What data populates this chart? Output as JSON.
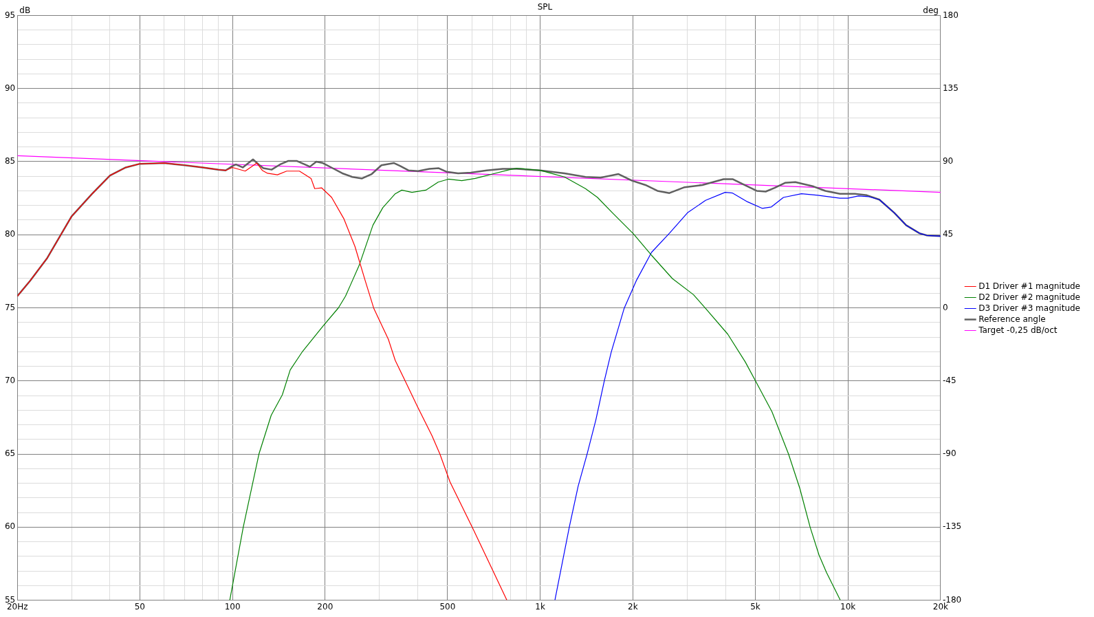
{
  "chart_data": {
    "type": "line",
    "title": "SPL",
    "ylabel": "dB",
    "y2label": "deg",
    "log": "x",
    "grid": true,
    "legend": "right",
    "marker": "none",
    "xlim": [
      20,
      20000
    ],
    "xticks": [
      {
        "value": 20,
        "label": "20Hz"
      },
      {
        "value": 30,
        "label": null
      },
      {
        "value": 40,
        "label": null
      },
      50,
      {
        "value": 60,
        "label": null
      },
      {
        "value": 70,
        "label": null
      },
      {
        "value": 80,
        "label": null
      },
      {
        "value": 90,
        "label": null
      },
      100,
      200,
      {
        "value": 300,
        "label": null
      },
      {
        "value": 400,
        "label": null
      },
      500,
      {
        "value": 600,
        "label": null
      },
      {
        "value": 700,
        "label": null
      },
      {
        "value": 800,
        "label": null
      },
      {
        "value": 900,
        "label": null
      },
      {
        "value": 1000,
        "label": "1k"
      },
      {
        "value": 2000,
        "label": "2k"
      },
      {
        "value": 3000,
        "label": null
      },
      {
        "value": 4000,
        "label": null
      },
      {
        "value": 5000,
        "label": "5k"
      },
      {
        "value": 6000,
        "label": null
      },
      {
        "value": 7000,
        "label": null
      },
      {
        "value": 8000,
        "label": null
      },
      {
        "value": 9000,
        "label": null
      },
      {
        "value": 10000,
        "label": "10k"
      },
      {
        "value": 20000,
        "label": "20k"
      }
    ],
    "ylim": [
      55,
      95
    ],
    "yticks": [
      55,
      {
        "value": 56,
        "label": null
      },
      {
        "value": 57,
        "label": null
      },
      {
        "value": 58,
        "label": null
      },
      {
        "value": 59,
        "label": null
      },
      60,
      {
        "value": 61,
        "label": null
      },
      {
        "value": 62,
        "label": null
      },
      {
        "value": 63,
        "label": null
      },
      {
        "value": 64,
        "label": null
      },
      65,
      {
        "value": 66,
        "label": null
      },
      {
        "value": 67,
        "label": null
      },
      {
        "value": 68,
        "label": null
      },
      {
        "value": 69,
        "label": null
      },
      70,
      {
        "value": 71,
        "label": null
      },
      {
        "value": 72,
        "label": null
      },
      {
        "value": 73,
        "label": null
      },
      {
        "value": 74,
        "label": null
      },
      75,
      {
        "value": 76,
        "label": null
      },
      {
        "value": 77,
        "label": null
      },
      {
        "value": 78,
        "label": null
      },
      {
        "value": 79,
        "label": null
      },
      80,
      {
        "value": 81,
        "label": null
      },
      {
        "value": 82,
        "label": null
      },
      {
        "value": 83,
        "label": null
      },
      {
        "value": 84,
        "label": null
      },
      85,
      {
        "value": 86,
        "label": null
      },
      {
        "value": 87,
        "label": null
      },
      {
        "value": 88,
        "label": null
      },
      {
        "value": 89,
        "label": null
      },
      90,
      {
        "value": 91,
        "label": null
      },
      {
        "value": 92,
        "label": null
      },
      {
        "value": 93,
        "label": null
      },
      {
        "value": 94,
        "label": null
      },
      95
    ],
    "y2lim": [
      -180,
      180
    ],
    "y2ticks": [
      -180,
      -135,
      -90,
      -45,
      0,
      45,
      90,
      135,
      180
    ],
    "series": [
      {
        "name": "D1 Driver #1 magnitude",
        "color": "#ff0000",
        "x": [
          20,
          22,
          25,
          30,
          35,
          40,
          45,
          50,
          60,
          70,
          80,
          90,
          95,
          100,
          110,
          120,
          125,
          130,
          140,
          150,
          165,
          180,
          185,
          195,
          210,
          230,
          250,
          270,
          288,
          321,
          338,
          364,
          399,
          445,
          472,
          509,
          601,
          699,
          779
        ],
        "values": [
          75.8,
          76.85,
          78.4,
          81.25,
          82.8,
          84.05,
          84.6,
          84.85,
          84.9,
          84.75,
          84.6,
          84.45,
          84.4,
          84.6,
          84.35,
          84.9,
          84.4,
          84.2,
          84.1,
          84.35,
          84.35,
          83.85,
          83.15,
          83.2,
          82.55,
          81.1,
          79.2,
          76.85,
          74.95,
          72.85,
          71.4,
          70,
          68.25,
          66.25,
          65,
          63.1,
          60,
          57.1,
          55
        ]
      },
      {
        "name": "D2 Driver #2 magnitude",
        "color": "#008000",
        "x": [
          98,
          108.4,
          121.9,
          133.6,
          145.2,
          154,
          168.7,
          196,
          221,
          233,
          258,
          286,
          308,
          338,
          355,
          383,
          425,
          466,
          503,
          556,
          615,
          699,
          796,
          838,
          1000,
          1199,
          1403,
          1535,
          1716,
          2010,
          2298,
          2688,
          3147,
          3450,
          4067,
          4637,
          5006,
          5662,
          6409,
          6975,
          7534,
          8050,
          8515,
          9442
        ],
        "values": [
          55,
          60,
          65,
          67.65,
          69.05,
          70.75,
          72,
          73.7,
          75,
          75.8,
          77.9,
          80.65,
          81.85,
          82.8,
          83.05,
          82.9,
          83.05,
          83.6,
          83.8,
          83.7,
          83.85,
          84.15,
          84.45,
          84.55,
          84.4,
          83.95,
          83.15,
          82.55,
          81.5,
          80.05,
          78.6,
          77,
          75.9,
          74.95,
          73.2,
          71.3,
          70,
          67.9,
          65,
          62.65,
          60,
          58.1,
          56.9,
          55
        ]
      },
      {
        "name": "D3 Driver #3 magnitude",
        "color": "#0000ff",
        "x": [
          1116,
          1243,
          1328,
          1420,
          1517,
          1615,
          1700,
          1873,
          2057,
          2301,
          2629,
          3010,
          3446,
          3989,
          4218,
          4716,
          5273,
          5640,
          6170,
          7064,
          7977,
          9410,
          10000,
          10810,
          11690,
          12650,
          14140,
          15450,
          17070,
          18060,
          20000
        ],
        "values": [
          55,
          60,
          62.8,
          65,
          67.35,
          70,
          71.95,
          74.95,
          76.9,
          78.8,
          80.1,
          81.5,
          82.35,
          82.9,
          82.85,
          82.25,
          81.8,
          81.9,
          82.55,
          82.8,
          82.7,
          82.5,
          82.5,
          82.65,
          82.6,
          82.4,
          81.5,
          80.65,
          80.1,
          79.95,
          79.9
        ]
      },
      {
        "name": "Reference angle",
        "color": "#606060",
        "x": [
          20,
          22,
          25,
          30,
          35,
          40,
          45,
          50,
          60,
          70,
          80,
          90,
          95,
          100,
          102.6,
          108,
          116.6,
          121.7,
          126,
          134,
          142.6,
          151.9,
          161.6,
          172,
          178.4,
          187.3,
          196.7,
          211.6,
          227.5,
          245,
          263.6,
          283.4,
          304.7,
          335,
          351,
          373,
          401,
          436,
          468,
          497,
          541,
          595,
          670,
          755,
          838,
          1000,
          1199,
          1403,
          1570,
          1796,
          1987,
          2198,
          2403,
          2629,
          2945,
          3365,
          3942,
          4218,
          4612,
          5050,
          5403,
          5776,
          6245,
          6746,
          7726,
          8442,
          9417,
          10530,
          11520,
          12650,
          14140,
          15450,
          17070,
          18060,
          20000
        ],
        "values": [
          75.8,
          76.85,
          78.4,
          81.25,
          82.8,
          84.05,
          84.6,
          84.85,
          84.9,
          84.75,
          84.6,
          84.45,
          84.4,
          84.7,
          84.8,
          84.6,
          85.15,
          84.8,
          84.55,
          84.45,
          84.8,
          85.05,
          85.05,
          84.8,
          84.65,
          85,
          84.9,
          84.55,
          84.2,
          83.95,
          83.85,
          84.15,
          84.75,
          84.9,
          84.7,
          84.4,
          84.35,
          84.5,
          84.55,
          84.3,
          84.2,
          84.25,
          84.4,
          84.5,
          84.5,
          84.4,
          84.2,
          83.95,
          83.9,
          84.15,
          83.7,
          83.4,
          83,
          82.85,
          83.25,
          83.4,
          83.8,
          83.8,
          83.4,
          83,
          82.95,
          83.2,
          83.55,
          83.6,
          83.3,
          83,
          82.8,
          82.8,
          82.7,
          82.4,
          81.5,
          80.65,
          80.1,
          79.95,
          79.9
        ]
      },
      {
        "name": "Target -0,25 dB/oct",
        "color": "#ff00ff",
        "x": [
          20,
          20000
        ],
        "values": [
          85.4,
          82.9
        ]
      }
    ]
  }
}
